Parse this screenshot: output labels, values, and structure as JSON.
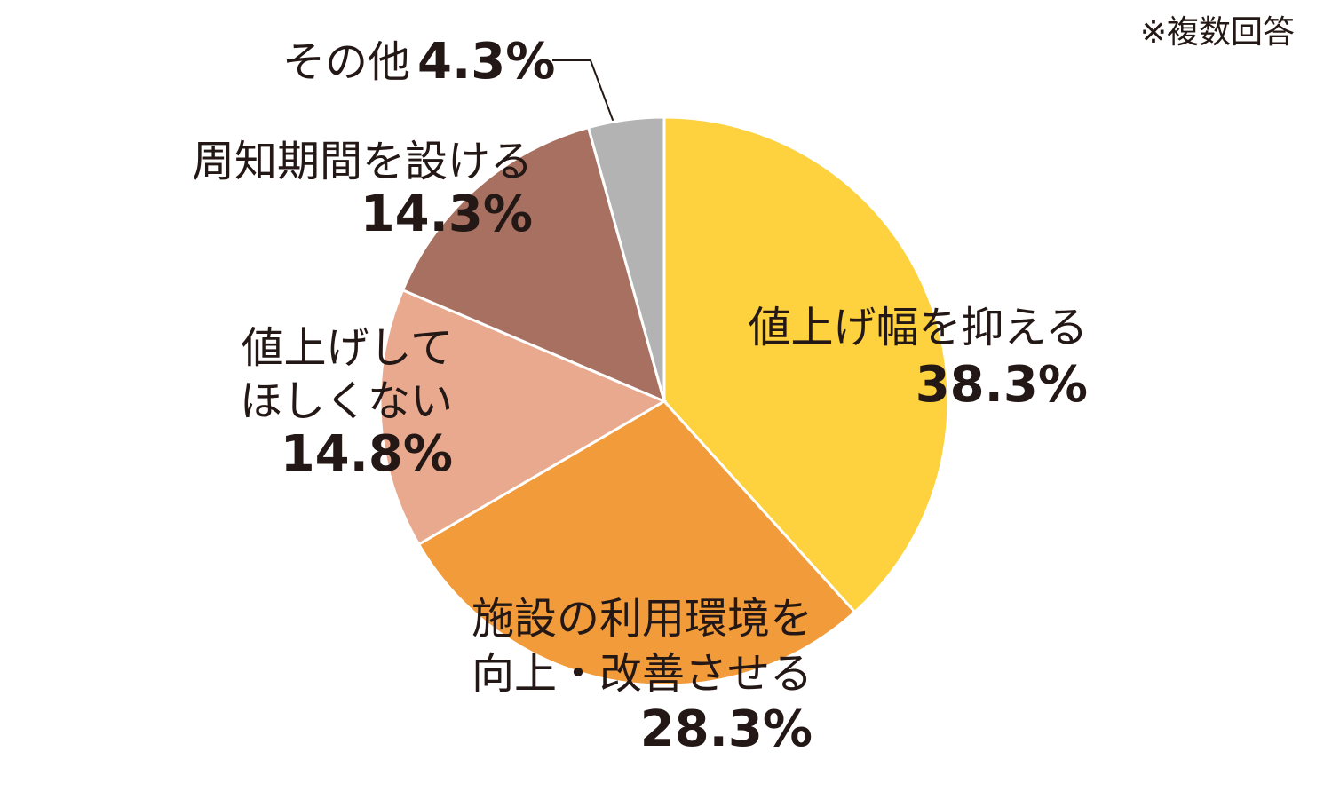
{
  "chart_data": {
    "type": "pie",
    "annotation": "※複数回答",
    "categories": [
      [
        "値上げ幅を抑える"
      ],
      [
        "施設の利用環境を",
        "向上・改善させる"
      ],
      [
        "値上げして",
        "ほしくない"
      ],
      [
        "周知期間を設ける"
      ],
      [
        "その他"
      ]
    ],
    "values": [
      38.3,
      28.3,
      14.8,
      14.3,
      4.3
    ],
    "value_labels": [
      "38.3%",
      "28.3%",
      "14.8%",
      "14.3%",
      "4.3%"
    ],
    "colors": [
      "#fdd23e",
      "#f29b3a",
      "#e8a98e",
      "#a87060",
      "#b3b3b3"
    ]
  }
}
